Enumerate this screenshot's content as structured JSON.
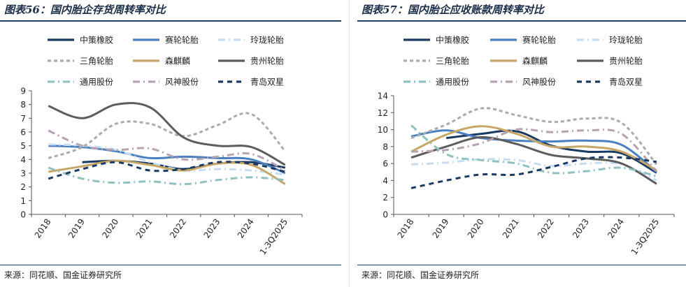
{
  "charts": [
    {
      "title": "图表56：国内胎企存货周转率对比",
      "source": "来源：同花顺、国金证券研究所"
    },
    {
      "title": "图表57：国内胎企应收账款周转率对比",
      "source": "来源：同花顺、国金证券研究所"
    }
  ],
  "chart_data": [
    {
      "type": "line",
      "title": "图表56：国内胎企存货周转率对比",
      "categories": [
        "2018",
        "2019",
        "2020",
        "2021",
        "2022",
        "2023",
        "2024",
        "1-3Q2025"
      ],
      "ylim": [
        0,
        9
      ],
      "yticks": [
        0,
        1,
        2,
        3,
        4,
        5,
        6,
        7,
        8,
        9
      ],
      "legend_position": "top",
      "series": [
        {
          "name": "中策橡胶",
          "color": "#1b3a63",
          "dash": "solid",
          "values": [
            null,
            3.8,
            3.9,
            3.7,
            3.3,
            3.7,
            3.8,
            3.4
          ]
        },
        {
          "name": "赛轮轮胎",
          "color": "#4a7fc1",
          "dash": "solid",
          "values": [
            5.0,
            4.9,
            4.6,
            4.1,
            4.2,
            4.1,
            4.0,
            3.0
          ]
        },
        {
          "name": "玲珑轮胎",
          "color": "#c6ddef",
          "dash": "dashdot",
          "values": [
            5.1,
            5.0,
            4.7,
            3.8,
            3.2,
            3.3,
            3.2,
            2.9
          ]
        },
        {
          "name": "三角轮胎",
          "color": "#ababab",
          "dash": "dash",
          "values": [
            4.1,
            4.9,
            6.6,
            6.6,
            5.7,
            6.5,
            7.3,
            4.6
          ]
        },
        {
          "name": "森麒麟",
          "color": "#c7a765",
          "dash": "solid",
          "values": [
            3.1,
            3.5,
            3.9,
            3.6,
            3.2,
            3.7,
            3.6,
            2.2
          ]
        },
        {
          "name": "贵州轮胎",
          "color": "#5c5c5c",
          "dash": "solid",
          "values": [
            7.9,
            7.0,
            8.0,
            7.8,
            5.6,
            5.0,
            4.9,
            3.6
          ]
        },
        {
          "name": "通用股份",
          "color": "#8fc1c1",
          "dash": "dashdot",
          "values": [
            3.4,
            2.6,
            2.3,
            2.4,
            2.2,
            2.5,
            2.7,
            2.5
          ]
        },
        {
          "name": "风神股份",
          "color": "#b6a2b2",
          "dash": "dashdot",
          "values": [
            6.1,
            5.0,
            4.7,
            4.8,
            4.0,
            4.2,
            4.4,
            3.2
          ]
        },
        {
          "name": "青岛双星",
          "color": "#1b3a63",
          "dash": "bigdash",
          "values": [
            2.6,
            3.3,
            3.8,
            3.2,
            3.3,
            3.8,
            3.7,
            3.1
          ]
        }
      ]
    },
    {
      "type": "line",
      "title": "图表57：国内胎企应收账款周转率对比",
      "categories": [
        "2018",
        "2019",
        "2020",
        "2021",
        "2022",
        "2023",
        "2024",
        "1-3Q2025"
      ],
      "ylim": [
        0,
        14
      ],
      "yticks": [
        0,
        2,
        4,
        6,
        8,
        10,
        12,
        14
      ],
      "legend_position": "top",
      "series": [
        {
          "name": "中策橡胶",
          "color": "#1b3a63",
          "dash": "solid",
          "values": [
            null,
            9.0,
            9.5,
            9.8,
            8.1,
            7.4,
            7.2,
            4.9
          ]
        },
        {
          "name": "赛轮轮胎",
          "color": "#4a7fc1",
          "dash": "solid",
          "values": [
            9.2,
            9.9,
            9.0,
            8.7,
            8.6,
            8.7,
            8.2,
            5.0
          ]
        },
        {
          "name": "玲珑轮胎",
          "color": "#c6ddef",
          "dash": "dashdot",
          "values": [
            5.9,
            6.1,
            6.5,
            6.4,
            5.7,
            6.0,
            5.9,
            4.0
          ]
        },
        {
          "name": "三角轮胎",
          "color": "#ababab",
          "dash": "dash",
          "values": [
            9.0,
            10.6,
            12.5,
            11.7,
            10.9,
            11.3,
            10.8,
            5.9
          ]
        },
        {
          "name": "森麒麟",
          "color": "#c7a765",
          "dash": "solid",
          "values": [
            7.4,
            9.4,
            10.4,
            9.5,
            8.0,
            8.0,
            7.4,
            5.2
          ]
        },
        {
          "name": "贵州轮胎",
          "color": "#5c5c5c",
          "dash": "solid",
          "values": [
            6.7,
            8.0,
            9.1,
            8.3,
            7.0,
            6.6,
            6.0,
            3.6
          ]
        },
        {
          "name": "通用股份",
          "color": "#8fc1c1",
          "dash": "dashdot",
          "values": [
            10.5,
            7.1,
            6.4,
            6.0,
            4.9,
            5.1,
            5.5,
            4.5
          ]
        },
        {
          "name": "风神股份",
          "color": "#b6a2b2",
          "dash": "dashdot",
          "values": [
            7.4,
            7.6,
            8.4,
            10.0,
            9.7,
            9.9,
            9.5,
            5.1
          ]
        },
        {
          "name": "青岛双星",
          "color": "#1b3a63",
          "dash": "bigdash",
          "values": [
            3.1,
            4.0,
            4.7,
            4.7,
            5.6,
            6.6,
            6.7,
            6.2
          ]
        }
      ]
    }
  ]
}
